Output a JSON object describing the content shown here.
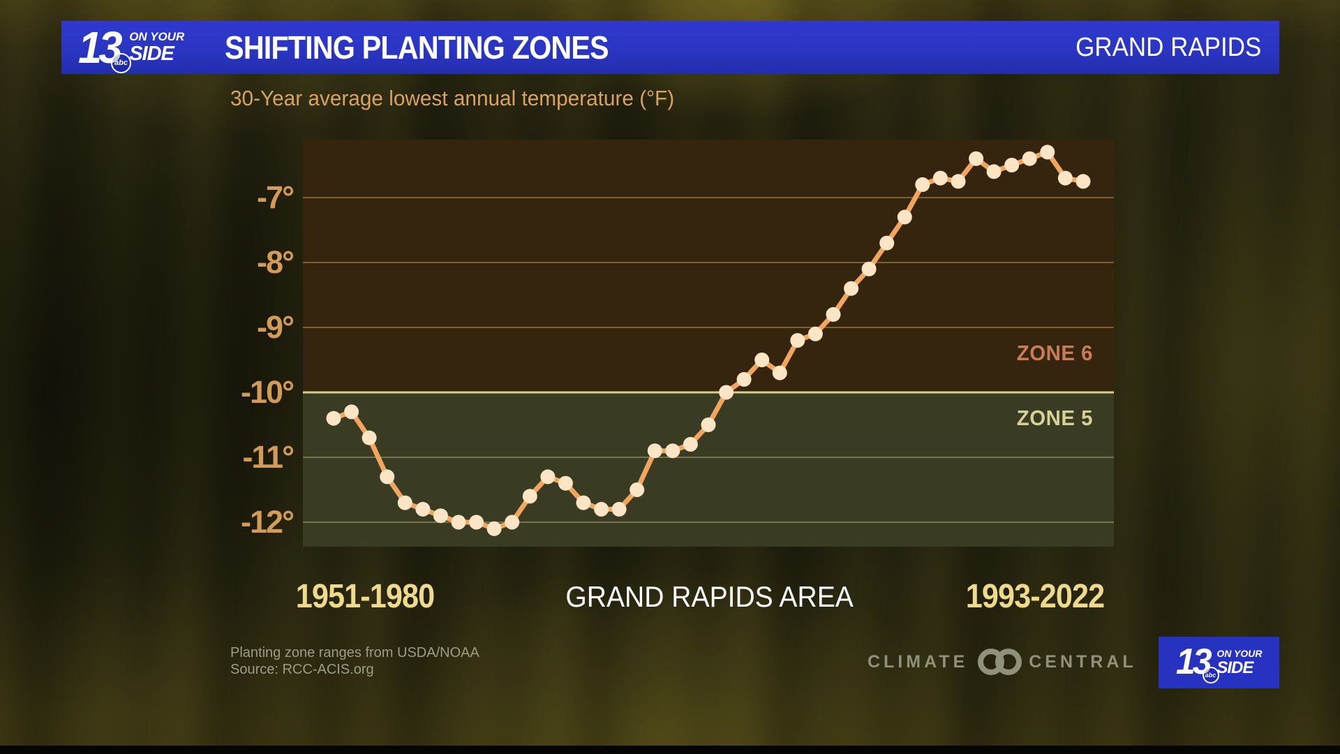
{
  "header": {
    "station_logo": {
      "number": "13",
      "abc": "abc",
      "line1": "ON YOUR",
      "line2": "SIDE"
    },
    "title": "SHIFTING PLANTING ZONES",
    "location": "GRAND RAPIDS",
    "banner_color": "#2b35c4"
  },
  "subtitle": "30-Year average lowest annual temperature (°F)",
  "zones": {
    "zone6": {
      "label": "ZONE 6",
      "text_color": "#c97c58",
      "band_color": "#35250f"
    },
    "zone5": {
      "label": "ZONE 5",
      "text_color": "#d6d195",
      "band_color": "#3a3b23"
    }
  },
  "x_axis": {
    "left_label": "1951-1980",
    "center_label": "GRAND RAPIDS AREA",
    "right_label": "1993-2022"
  },
  "footer": {
    "line1": "Planting zone ranges from USDA/NOAA",
    "line2": "Source: RCC-ACIS.org",
    "climate_central": {
      "left": "CLIMATE",
      "right": "CENTRAL"
    },
    "bug_logo": {
      "number": "13",
      "abc": "abc",
      "line1": "ON YOUR",
      "line2": "SIDE"
    }
  },
  "chart_data": {
    "type": "line",
    "title": "30-Year average lowest annual temperature (°F)",
    "location": "GRAND RAPIDS AREA",
    "window_length_years": 30,
    "first_window": "1951-1980",
    "last_window": "1993-2022",
    "x_window_start_years": [
      1951,
      1952,
      1953,
      1954,
      1955,
      1956,
      1957,
      1958,
      1959,
      1960,
      1961,
      1962,
      1963,
      1964,
      1965,
      1966,
      1967,
      1968,
      1969,
      1970,
      1971,
      1972,
      1973,
      1974,
      1975,
      1976,
      1977,
      1978,
      1979,
      1980,
      1981,
      1982,
      1983,
      1984,
      1985,
      1986,
      1987,
      1988,
      1989,
      1990,
      1991,
      1992,
      1993
    ],
    "values": [
      -10.4,
      -10.3,
      -10.7,
      -11.3,
      -11.7,
      -11.8,
      -11.9,
      -12.0,
      -12.0,
      -12.1,
      -12.0,
      -11.6,
      -11.3,
      -11.4,
      -11.7,
      -11.8,
      -11.8,
      -11.5,
      -10.9,
      -10.9,
      -10.8,
      -10.5,
      -10.0,
      -9.8,
      -9.5,
      -9.7,
      -9.2,
      -9.1,
      -8.8,
      -8.4,
      -8.1,
      -7.7,
      -7.3,
      -6.8,
      -6.7,
      -6.75,
      -6.4,
      -6.6,
      -6.5,
      -6.4,
      -6.3,
      -6.7,
      -6.75
    ],
    "y_ticks": [
      {
        "label": "-7°",
        "value": -7
      },
      {
        "label": "-8°",
        "value": -8
      },
      {
        "label": "-9°",
        "value": -9
      },
      {
        "label": "-10°",
        "value": -10
      },
      {
        "label": "-11°",
        "value": -11
      },
      {
        "label": "-12°",
        "value": -12
      }
    ],
    "zone_boundary_value": -10,
    "ylim": [
      -12.4,
      -6.1
    ],
    "grid": "on",
    "legend": "none",
    "line_color": "#f2a55e",
    "marker_color": "#fce5c4",
    "gridline_color_zone6": "rgba(224,180,98,0.42)",
    "gridline_color_zone5": "rgba(214,212,142,0.38)",
    "zone_boundary_color": "#d6d08f"
  }
}
